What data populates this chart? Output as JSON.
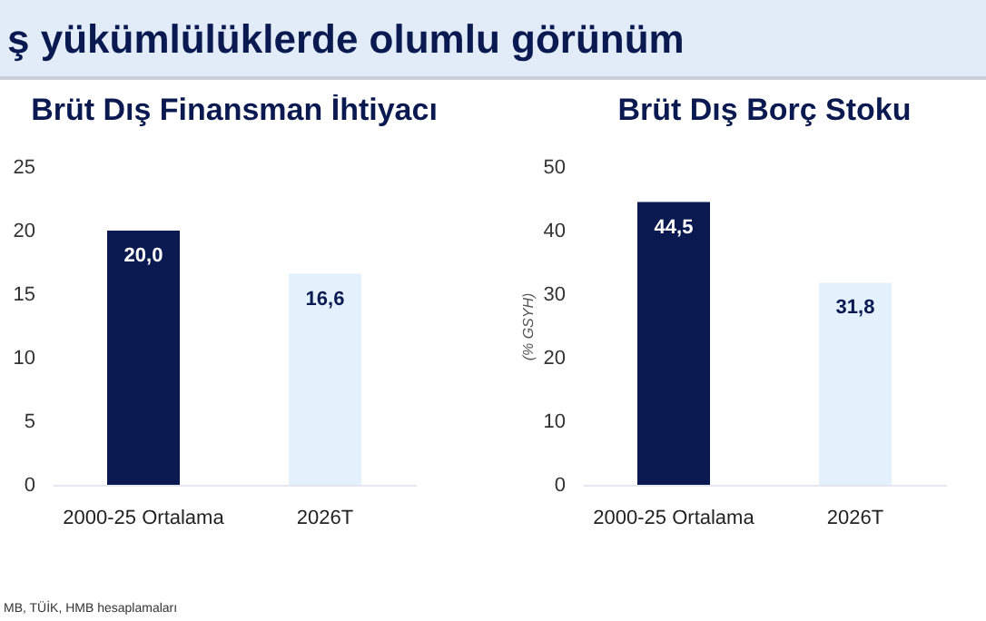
{
  "chart_data": [
    {
      "type": "bar",
      "title": "Brüt Dış Finansman İhtiyacı",
      "categories": [
        "2000-25 Ortalama",
        "2026T"
      ],
      "values": [
        20.0,
        16.6
      ],
      "colors": [
        "#0a1a50",
        "#e3f1fc"
      ],
      "value_labels": [
        "20,0",
        "16,6"
      ],
      "ylim": [
        0,
        25
      ],
      "yticks": [
        0,
        5,
        10,
        15,
        20,
        25
      ],
      "grid": false,
      "annotations": [
        "ş yükümlülüklerde olumlu görünüm",
        "MB, TÜİK, HMB hesaplamaları"
      ]
    },
    {
      "type": "bar",
      "title": "Brüt Dış Borç Stoku",
      "ylabel": "(% GSYH)",
      "categories": [
        "2000-25 Ortalama",
        "2026T"
      ],
      "values": [
        44.5,
        31.8
      ],
      "colors": [
        "#0a1a50",
        "#e3f1fc"
      ],
      "value_labels": [
        "44,5",
        "31,8"
      ],
      "ylim": [
        0,
        50
      ],
      "yticks": [
        0,
        10,
        20,
        30,
        40,
        50
      ],
      "grid": false
    }
  ]
}
